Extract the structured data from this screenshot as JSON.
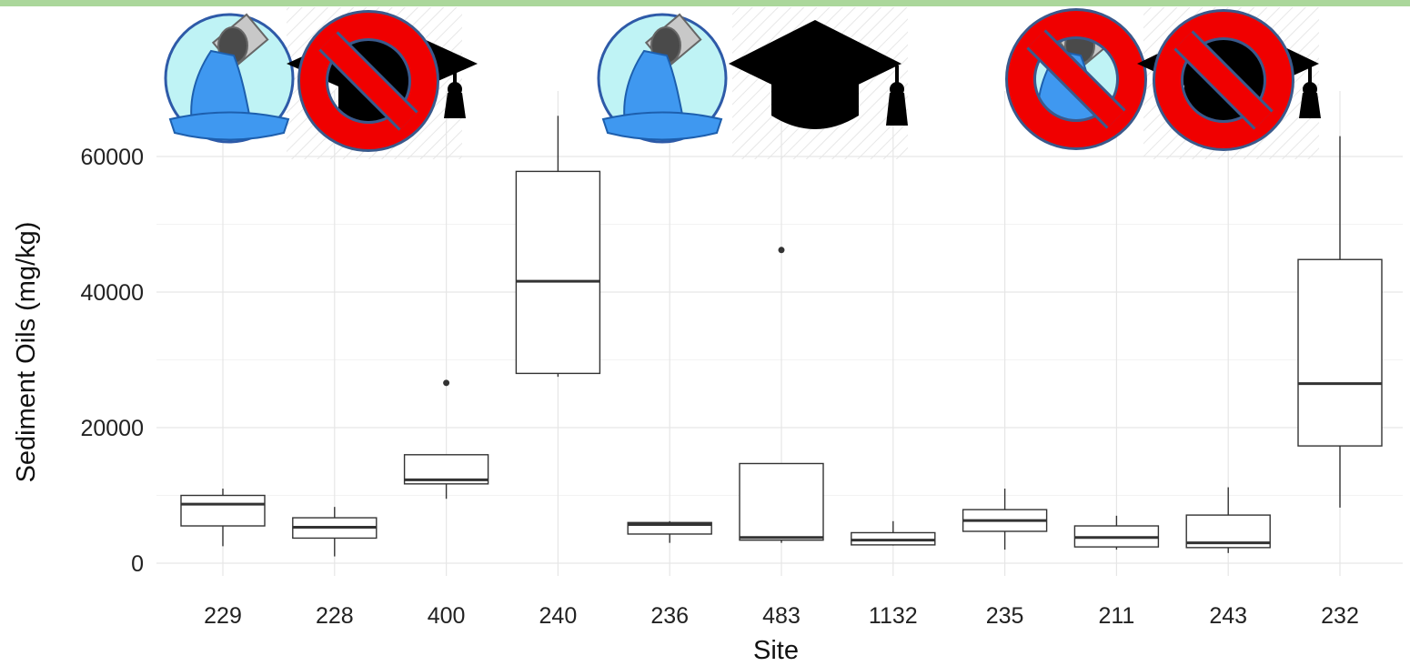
{
  "chart_data": {
    "type": "boxplot",
    "xlabel": "Site",
    "ylabel": "Sediment Oils (mg/kg)",
    "ylim": [
      -2000,
      66000
    ],
    "y_ticks": [
      0,
      20000,
      40000,
      60000
    ],
    "grid": true,
    "categories": [
      "229",
      "228",
      "400",
      "240",
      "236",
      "483",
      "1132",
      "235",
      "211",
      "243",
      "232"
    ],
    "boxes": [
      {
        "site": "229",
        "min": 2500,
        "q1": 5500,
        "median": 8700,
        "q3": 10000,
        "max": 11000,
        "outliers": []
      },
      {
        "site": "228",
        "min": 1000,
        "q1": 3700,
        "median": 5300,
        "q3": 6700,
        "max": 8300,
        "outliers": []
      },
      {
        "site": "400",
        "min": 9500,
        "q1": 11700,
        "median": 12300,
        "q3": 16000,
        "max": 16000,
        "outliers": [
          26600
        ]
      },
      {
        "site": "240",
        "min": 27500,
        "q1": 28000,
        "median": 41600,
        "q3": 57800,
        "max": 66000,
        "outliers": []
      },
      {
        "site": "236",
        "min": 3000,
        "q1": 4300,
        "median": 5700,
        "q3": 6000,
        "max": 6200,
        "outliers": []
      },
      {
        "site": "483",
        "min": 3000,
        "q1": 3400,
        "median": 3800,
        "q3": 14700,
        "max": 14700,
        "outliers": [
          46200
        ]
      },
      {
        "site": "1132",
        "min": 2600,
        "q1": 2700,
        "median": 3400,
        "q3": 4500,
        "max": 6200,
        "outliers": []
      },
      {
        "site": "235",
        "min": 2000,
        "q1": 4700,
        "median": 6300,
        "q3": 7900,
        "max": 11000,
        "outliers": []
      },
      {
        "site": "211",
        "min": 2000,
        "q1": 2400,
        "median": 3800,
        "q3": 5500,
        "max": 7000,
        "outliers": []
      },
      {
        "site": "243",
        "min": 1500,
        "q1": 2300,
        "median": 3000,
        "q3": 7100,
        "max": 11200,
        "outliers": []
      },
      {
        "site": "232",
        "min": 8200,
        "q1": 17300,
        "median": 26500,
        "q3": 44800,
        "max": 63000,
        "outliers": []
      }
    ]
  },
  "icons": [
    {
      "group": 1,
      "water_icon": "water-outfall-icon",
      "water_crossed": false,
      "cap_icon": "graduation-cap-icon",
      "cap_crossed": true
    },
    {
      "group": 2,
      "water_icon": "water-outfall-icon",
      "water_crossed": false,
      "cap_icon": "graduation-cap-icon",
      "cap_crossed": false
    },
    {
      "group": 3,
      "water_icon": "water-outfall-icon",
      "water_crossed": true,
      "cap_icon": "graduation-cap-icon",
      "cap_crossed": true
    }
  ],
  "colors": {
    "prohibited_fill": "#f00000",
    "prohibited_stroke": "#3a5a8c",
    "water_blue": "#3f98f0",
    "water_bg": "#bff3f5",
    "top_strip": "#8fc97a"
  }
}
